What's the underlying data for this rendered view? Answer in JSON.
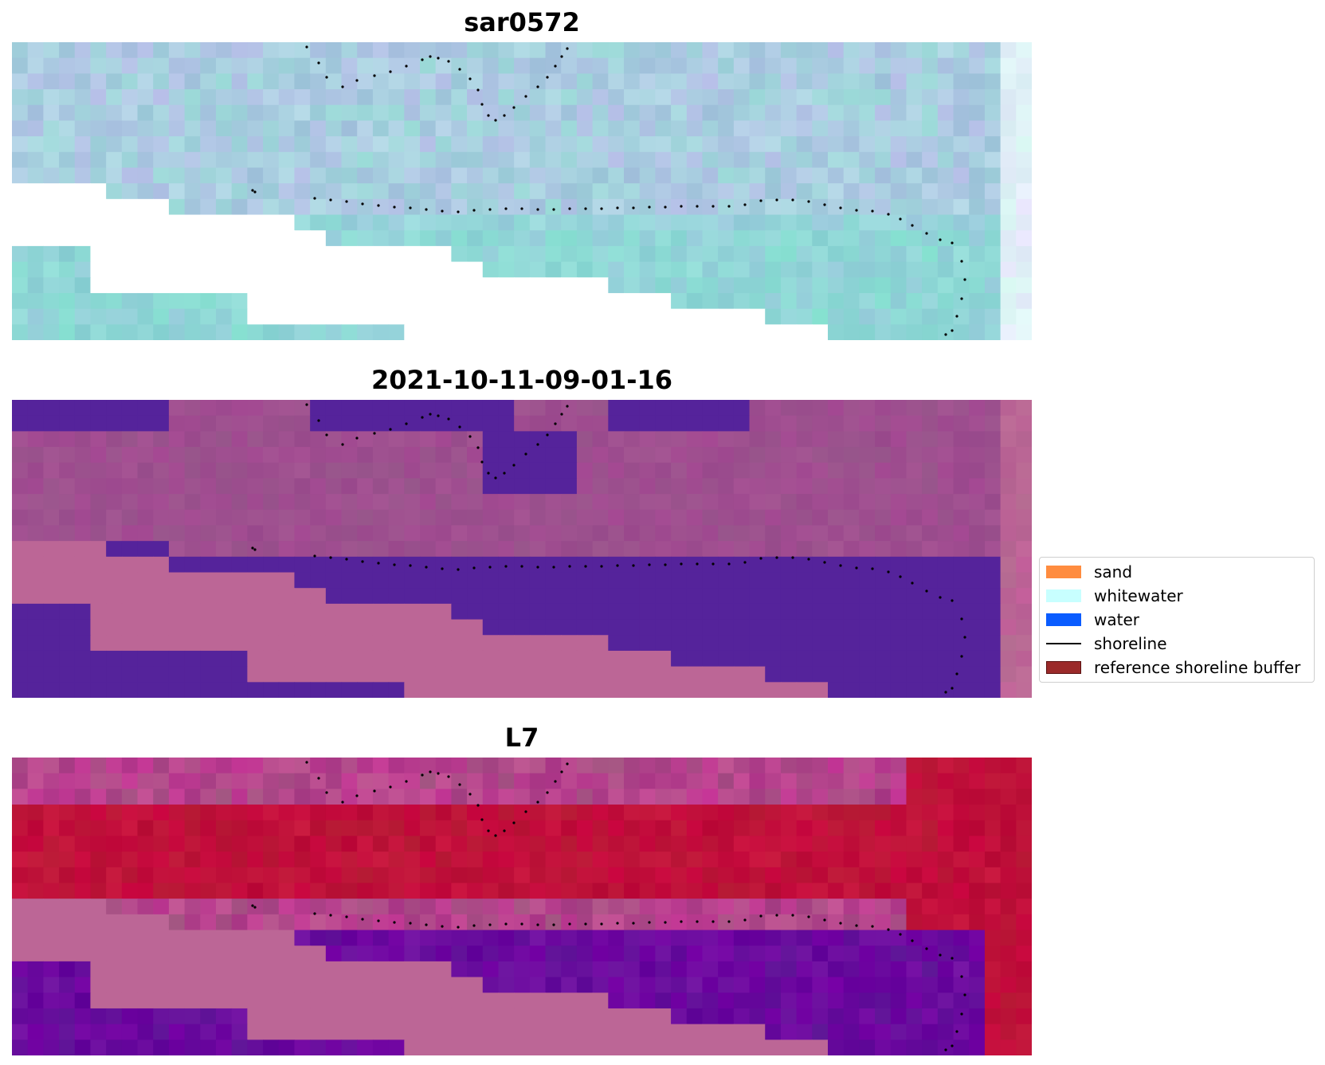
{
  "panels": [
    {
      "title": "sar0572",
      "style": "sar"
    },
    {
      "title": "2021-10-11-09-01-16",
      "style": "classified"
    },
    {
      "title": "L7",
      "style": "mndwi"
    }
  ],
  "legend": {
    "placement": "center-right",
    "items": [
      {
        "label": "sand",
        "kind": "patch",
        "color": "#ff8c3f"
      },
      {
        "label": "whitewater",
        "kind": "patch",
        "color": "#c8ffff"
      },
      {
        "label": "water",
        "kind": "patch",
        "color": "#0a5cff"
      },
      {
        "label": "shoreline",
        "kind": "line",
        "color": "#000000"
      },
      {
        "label": "reference shoreline buffer",
        "kind": "patch",
        "color": "#9b2a2a"
      }
    ]
  },
  "colors": {
    "sar_base": "#a9cde0",
    "sar_water": "#8fd6d6",
    "class_land": "#9e4f8f",
    "class_water": "#55239b",
    "class_pink": "#bc6696",
    "l7_red": "#c0103a",
    "l7_purple": "#6a0a9e",
    "l7_pink": "#bc6696"
  }
}
